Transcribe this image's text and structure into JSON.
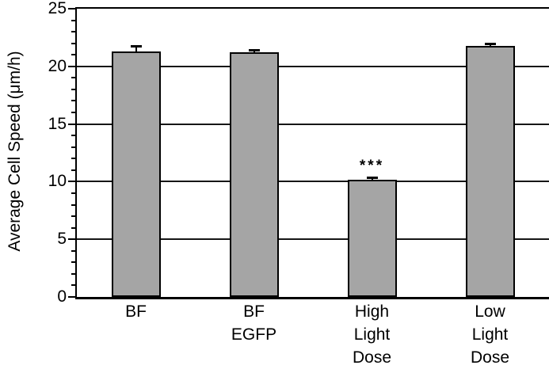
{
  "chart_data": {
    "type": "bar",
    "title": "",
    "ylabel": "Average Cell Speed (μm/h)",
    "xlabel": "",
    "categories": [
      "BF",
      "BF EGFP",
      "High Light Dose",
      "Low Light Dose"
    ],
    "category_label_lines": [
      [
        "BF"
      ],
      [
        "BF",
        "EGFP"
      ],
      [
        "High",
        "Light",
        "Dose"
      ],
      [
        "Low",
        "Light",
        "Dose"
      ]
    ],
    "values": [
      21.3,
      21.2,
      10.2,
      21.8
    ],
    "error_bars": [
      0.5,
      0.2,
      0.2,
      0.2
    ],
    "ylim": [
      0,
      25
    ],
    "ytick_interval": 5,
    "ytick_labels": [
      "0",
      "5",
      "10",
      "15",
      "20",
      "25"
    ],
    "minor_tick_interval": 1,
    "grid": true,
    "legend_position": "none",
    "annotations": [
      {
        "text": "***",
        "category_index": 2
      }
    ],
    "colors": {
      "bar_fill": "#a5a5a5",
      "bar_border": "#000000",
      "axis": "#000000",
      "gridline": "#161616",
      "background": "#ffffff",
      "text": "#000000"
    }
  }
}
